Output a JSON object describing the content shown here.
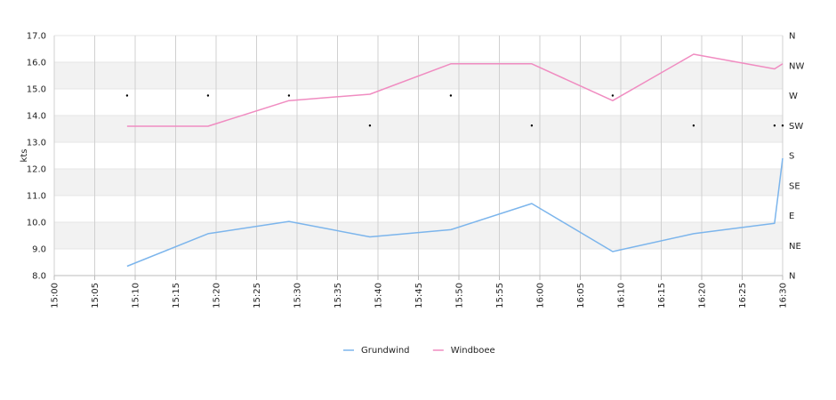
{
  "chart_data": {
    "type": "line",
    "ylabel": "kts",
    "ylim": [
      8.0,
      17.0
    ],
    "y_ticks": [
      "8.0",
      "9.0",
      "10.0",
      "11.0",
      "12.0",
      "13.0",
      "14.0",
      "15.0",
      "16.0",
      "17.0"
    ],
    "y2_ticks": [
      "N",
      "NE",
      "E",
      "SE",
      "S",
      "SW",
      "W",
      "NW",
      "N"
    ],
    "x_ticks": [
      "15:00",
      "15:05",
      "15:10",
      "15:15",
      "15:20",
      "15:25",
      "15:30",
      "15:35",
      "15:40",
      "15:45",
      "15:50",
      "15:55",
      "16:00",
      "16:05",
      "16:10",
      "16:15",
      "16:20",
      "16:25",
      "16:30"
    ],
    "xlim": [
      "15:00",
      "16:30"
    ],
    "grid": true,
    "legend_position": "bottom",
    "series": [
      {
        "name": "Grundwind",
        "color": "#7cb5ec",
        "points": [
          [
            "15:09",
            8.35
          ],
          [
            "15:19",
            9.57
          ],
          [
            "15:29",
            10.03
          ],
          [
            "15:39",
            9.45
          ],
          [
            "15:49",
            9.72
          ],
          [
            "15:59",
            10.7
          ],
          [
            "16:09",
            8.9
          ],
          [
            "16:19",
            9.57
          ],
          [
            "16:29",
            9.96
          ],
          [
            "16:30",
            12.4
          ]
        ]
      },
      {
        "name": "Windboee",
        "color": "#f08cc1",
        "points": [
          [
            "15:09",
            13.6
          ],
          [
            "15:19",
            13.6
          ],
          [
            "15:29",
            14.56
          ],
          [
            "15:39",
            14.8
          ],
          [
            "15:49",
            15.94
          ],
          [
            "15:59",
            15.94
          ],
          [
            "16:09",
            14.56
          ],
          [
            "16:19",
            16.3
          ],
          [
            "16:29",
            15.75
          ],
          [
            "16:30",
            15.94
          ]
        ]
      }
    ],
    "direction_marker_times": [
      "15:09",
      "15:19",
      "15:29",
      "15:39",
      "15:49",
      "15:59",
      "16:09",
      "16:19",
      "16:29",
      "16:30"
    ],
    "direction_marker_values": [
      "W",
      "W",
      "W",
      "SW",
      "W",
      "SW",
      "W",
      "SW",
      "SW",
      "SW"
    ]
  }
}
